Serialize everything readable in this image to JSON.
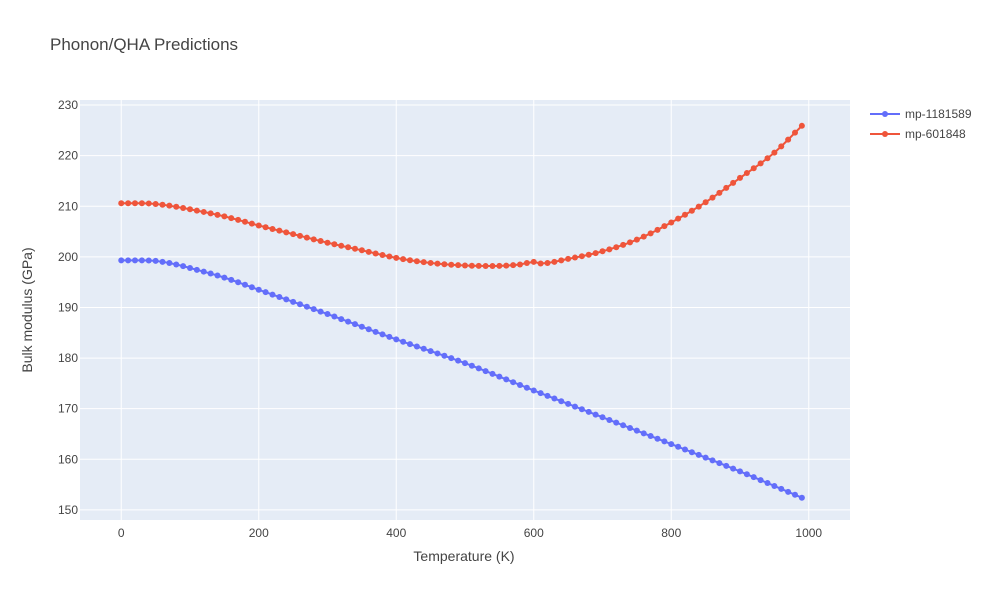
{
  "chart_data": {
    "type": "line",
    "title": "Phonon/QHA Predictions",
    "xlabel": "Temperature (K)",
    "ylabel": "Bulk modulus (GPa)",
    "xlim": [
      -60,
      1060
    ],
    "ylim": [
      148,
      231
    ],
    "xticks": [
      0,
      200,
      400,
      600,
      800,
      1000
    ],
    "yticks": [
      150,
      160,
      170,
      180,
      190,
      200,
      210,
      220,
      230
    ],
    "grid": true,
    "legend_position": "top-right",
    "series": [
      {
        "name": "mp-1181589",
        "color": "#636efa",
        "marker": "circle",
        "x_start": 0,
        "x_step": 10,
        "x_end": 990,
        "anchors": [
          [
            0,
            199.3
          ],
          [
            30,
            199.3
          ],
          [
            50,
            199.2
          ],
          [
            80,
            198.5
          ],
          [
            100,
            197.8
          ],
          [
            150,
            195.9
          ],
          [
            200,
            193.5
          ],
          [
            300,
            188.7
          ],
          [
            400,
            183.7
          ],
          [
            500,
            179.0
          ],
          [
            600,
            173.6
          ],
          [
            700,
            168.3
          ],
          [
            800,
            163.0
          ],
          [
            900,
            157.6
          ],
          [
            990,
            152.4
          ]
        ]
      },
      {
        "name": "mp-601848",
        "color": "#ef553b",
        "marker": "circle",
        "x_start": 0,
        "x_step": 10,
        "x_end": 990,
        "anchors": [
          [
            0,
            210.6
          ],
          [
            30,
            210.6
          ],
          [
            60,
            210.3
          ],
          [
            100,
            209.4
          ],
          [
            150,
            208.0
          ],
          [
            200,
            206.2
          ],
          [
            250,
            204.5
          ],
          [
            300,
            202.8
          ],
          [
            350,
            201.3
          ],
          [
            400,
            199.8
          ],
          [
            450,
            198.8
          ],
          [
            500,
            198.3
          ],
          [
            540,
            198.2
          ],
          [
            580,
            198.5
          ],
          [
            600,
            199.0
          ],
          [
            610,
            198.7
          ],
          [
            650,
            199.6
          ],
          [
            700,
            201.1
          ],
          [
            750,
            203.4
          ],
          [
            800,
            206.8
          ],
          [
            850,
            210.8
          ],
          [
            900,
            215.6
          ],
          [
            950,
            220.6
          ],
          [
            990,
            225.9
          ]
        ]
      }
    ]
  }
}
